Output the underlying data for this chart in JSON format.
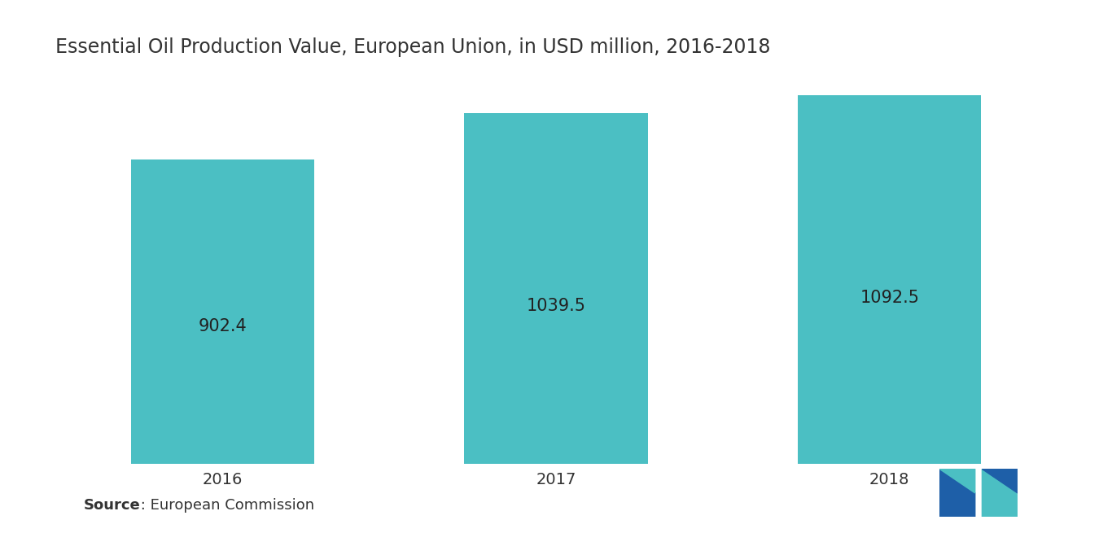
{
  "title": "Essential Oil Production Value, European Union, in USD million, 2016-2018",
  "categories": [
    "2016",
    "2017",
    "2018"
  ],
  "values": [
    902.4,
    1039.5,
    1092.5
  ],
  "bar_color": "#4BBFC3",
  "bar_width": 0.55,
  "label_fontsize": 15,
  "title_fontsize": 17,
  "tick_fontsize": 14,
  "source_bold": "Source",
  "source_rest": " : European Commission",
  "background_color": "#FFFFFF",
  "text_color": "#333333",
  "label_color": "#222222",
  "ylim": [
    0,
    1200
  ],
  "logo_left_dark": "#1E5FA8",
  "logo_left_light": "#4BBFC3",
  "logo_right_light": "#4BBFC3",
  "logo_right_dark": "#1E5FA8"
}
